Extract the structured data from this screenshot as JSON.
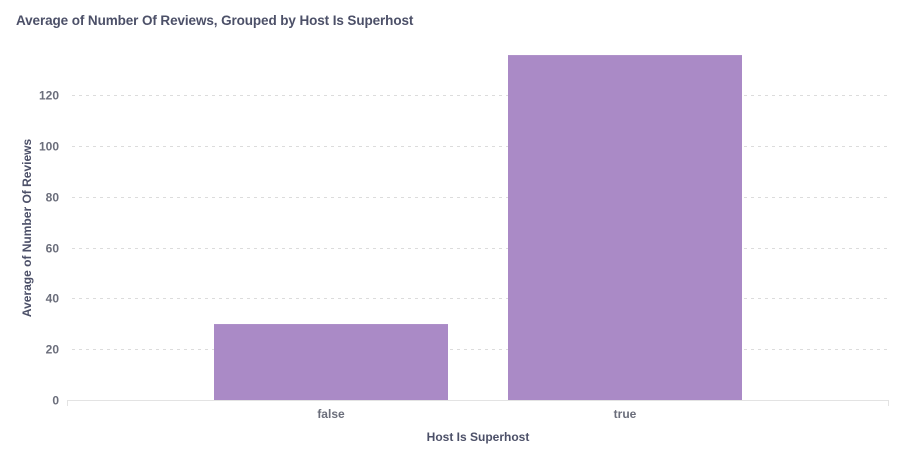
{
  "header": {
    "title": "Average of Number Of Reviews, Grouped by Host Is Superhost"
  },
  "colors": {
    "bar": "#aa8ac6",
    "grid": "#dcdcdc",
    "axis": "#e3e3e3"
  },
  "chart_data": {
    "type": "bar",
    "title": "Average of Number Of Reviews, Grouped by Host Is Superhost",
    "xlabel": "Host Is Superhost",
    "ylabel": "Average of Number Of Reviews",
    "categories": [
      "false",
      "true"
    ],
    "values": [
      29.9,
      135.8
    ],
    "ylim": [
      0,
      135.8
    ],
    "yticks": [
      0,
      20,
      40,
      60,
      80,
      100,
      120
    ],
    "grid": true,
    "legend": "none"
  }
}
